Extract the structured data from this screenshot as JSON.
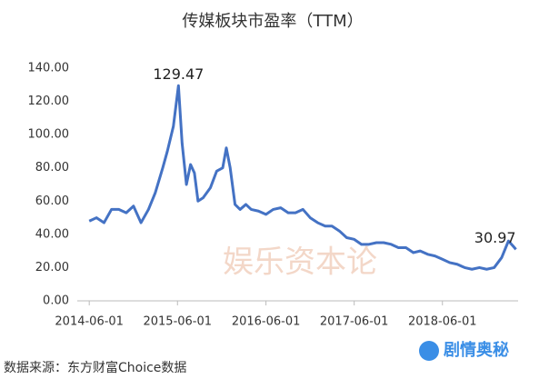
{
  "chart_data": {
    "type": "line",
    "title": "传媒板块市盈率（TTM）",
    "x": [
      "2014-06-01",
      "2014-07-01",
      "2014-08-01",
      "2014-09-01",
      "2014-10-01",
      "2014-11-01",
      "2014-12-01",
      "2015-01-01",
      "2015-02-01",
      "2015-03-01",
      "2015-04-01",
      "2015-04-20",
      "2015-05-15",
      "2015-06-05",
      "2015-06-20",
      "2015-07-08",
      "2015-07-25",
      "2015-08-10",
      "2015-08-25",
      "2015-09-15",
      "2015-10-15",
      "2015-11-10",
      "2015-12-05",
      "2015-12-20",
      "2016-01-05",
      "2016-01-25",
      "2016-02-15",
      "2016-03-10",
      "2016-04-01",
      "2016-05-01",
      "2016-06-01",
      "2016-07-01",
      "2016-08-01",
      "2016-09-01",
      "2016-10-01",
      "2016-11-01",
      "2016-12-01",
      "2017-01-01",
      "2017-02-01",
      "2017-03-01",
      "2017-04-01",
      "2017-05-01",
      "2017-06-01",
      "2017-07-01",
      "2017-08-01",
      "2017-09-01",
      "2017-10-01",
      "2017-11-01",
      "2017-12-01",
      "2018-01-01",
      "2018-02-01",
      "2018-03-01",
      "2018-04-01",
      "2018-05-01",
      "2018-06-01",
      "2018-07-01",
      "2018-08-01",
      "2018-09-01",
      "2018-10-01",
      "2018-11-01",
      "2018-12-01",
      "2019-01-01",
      "2019-02-01",
      "2019-03-01",
      "2019-03-20",
      "2019-04-01"
    ],
    "series": [
      {
        "name": "传媒板块市盈率",
        "color": "#4472c4",
        "values": [
          48,
          50,
          47,
          55,
          55,
          53,
          57,
          47,
          55,
          65,
          80,
          90,
          105,
          129.47,
          95,
          70,
          82,
          77,
          60,
          62,
          68,
          78,
          80,
          92,
          80,
          58,
          55,
          58,
          55,
          54,
          52,
          55,
          56,
          53,
          53,
          55,
          50,
          47,
          45,
          45,
          42,
          38,
          37,
          34,
          34,
          35,
          35,
          34,
          32,
          32,
          29,
          30,
          28,
          27,
          25,
          23,
          22,
          20,
          19,
          20,
          19,
          20,
          26,
          36,
          33,
          30.97
        ]
      }
    ],
    "xlim": [
      "2014-05-20",
      "2019-04-10"
    ],
    "xticks": [
      "2014-06-01",
      "2015-06-01",
      "2016-06-01",
      "2017-06-01",
      "2018-06-01"
    ],
    "ylim": [
      0,
      140
    ],
    "yticks": [
      {
        "value": 0,
        "label": "0.00"
      },
      {
        "value": 20,
        "label": "20.00"
      },
      {
        "value": 40,
        "label": "40.00"
      },
      {
        "value": 60,
        "label": "60.00"
      },
      {
        "value": 80,
        "label": "80.00"
      },
      {
        "value": 100,
        "label": "100.00"
      },
      {
        "value": 120,
        "label": "120.00"
      },
      {
        "value": 140,
        "label": "140.00"
      }
    ],
    "grid": false
  },
  "watermark": "娱乐资本论",
  "source": "数据来源：东方财富Choice数据",
  "logo": "剧情奥秘"
}
